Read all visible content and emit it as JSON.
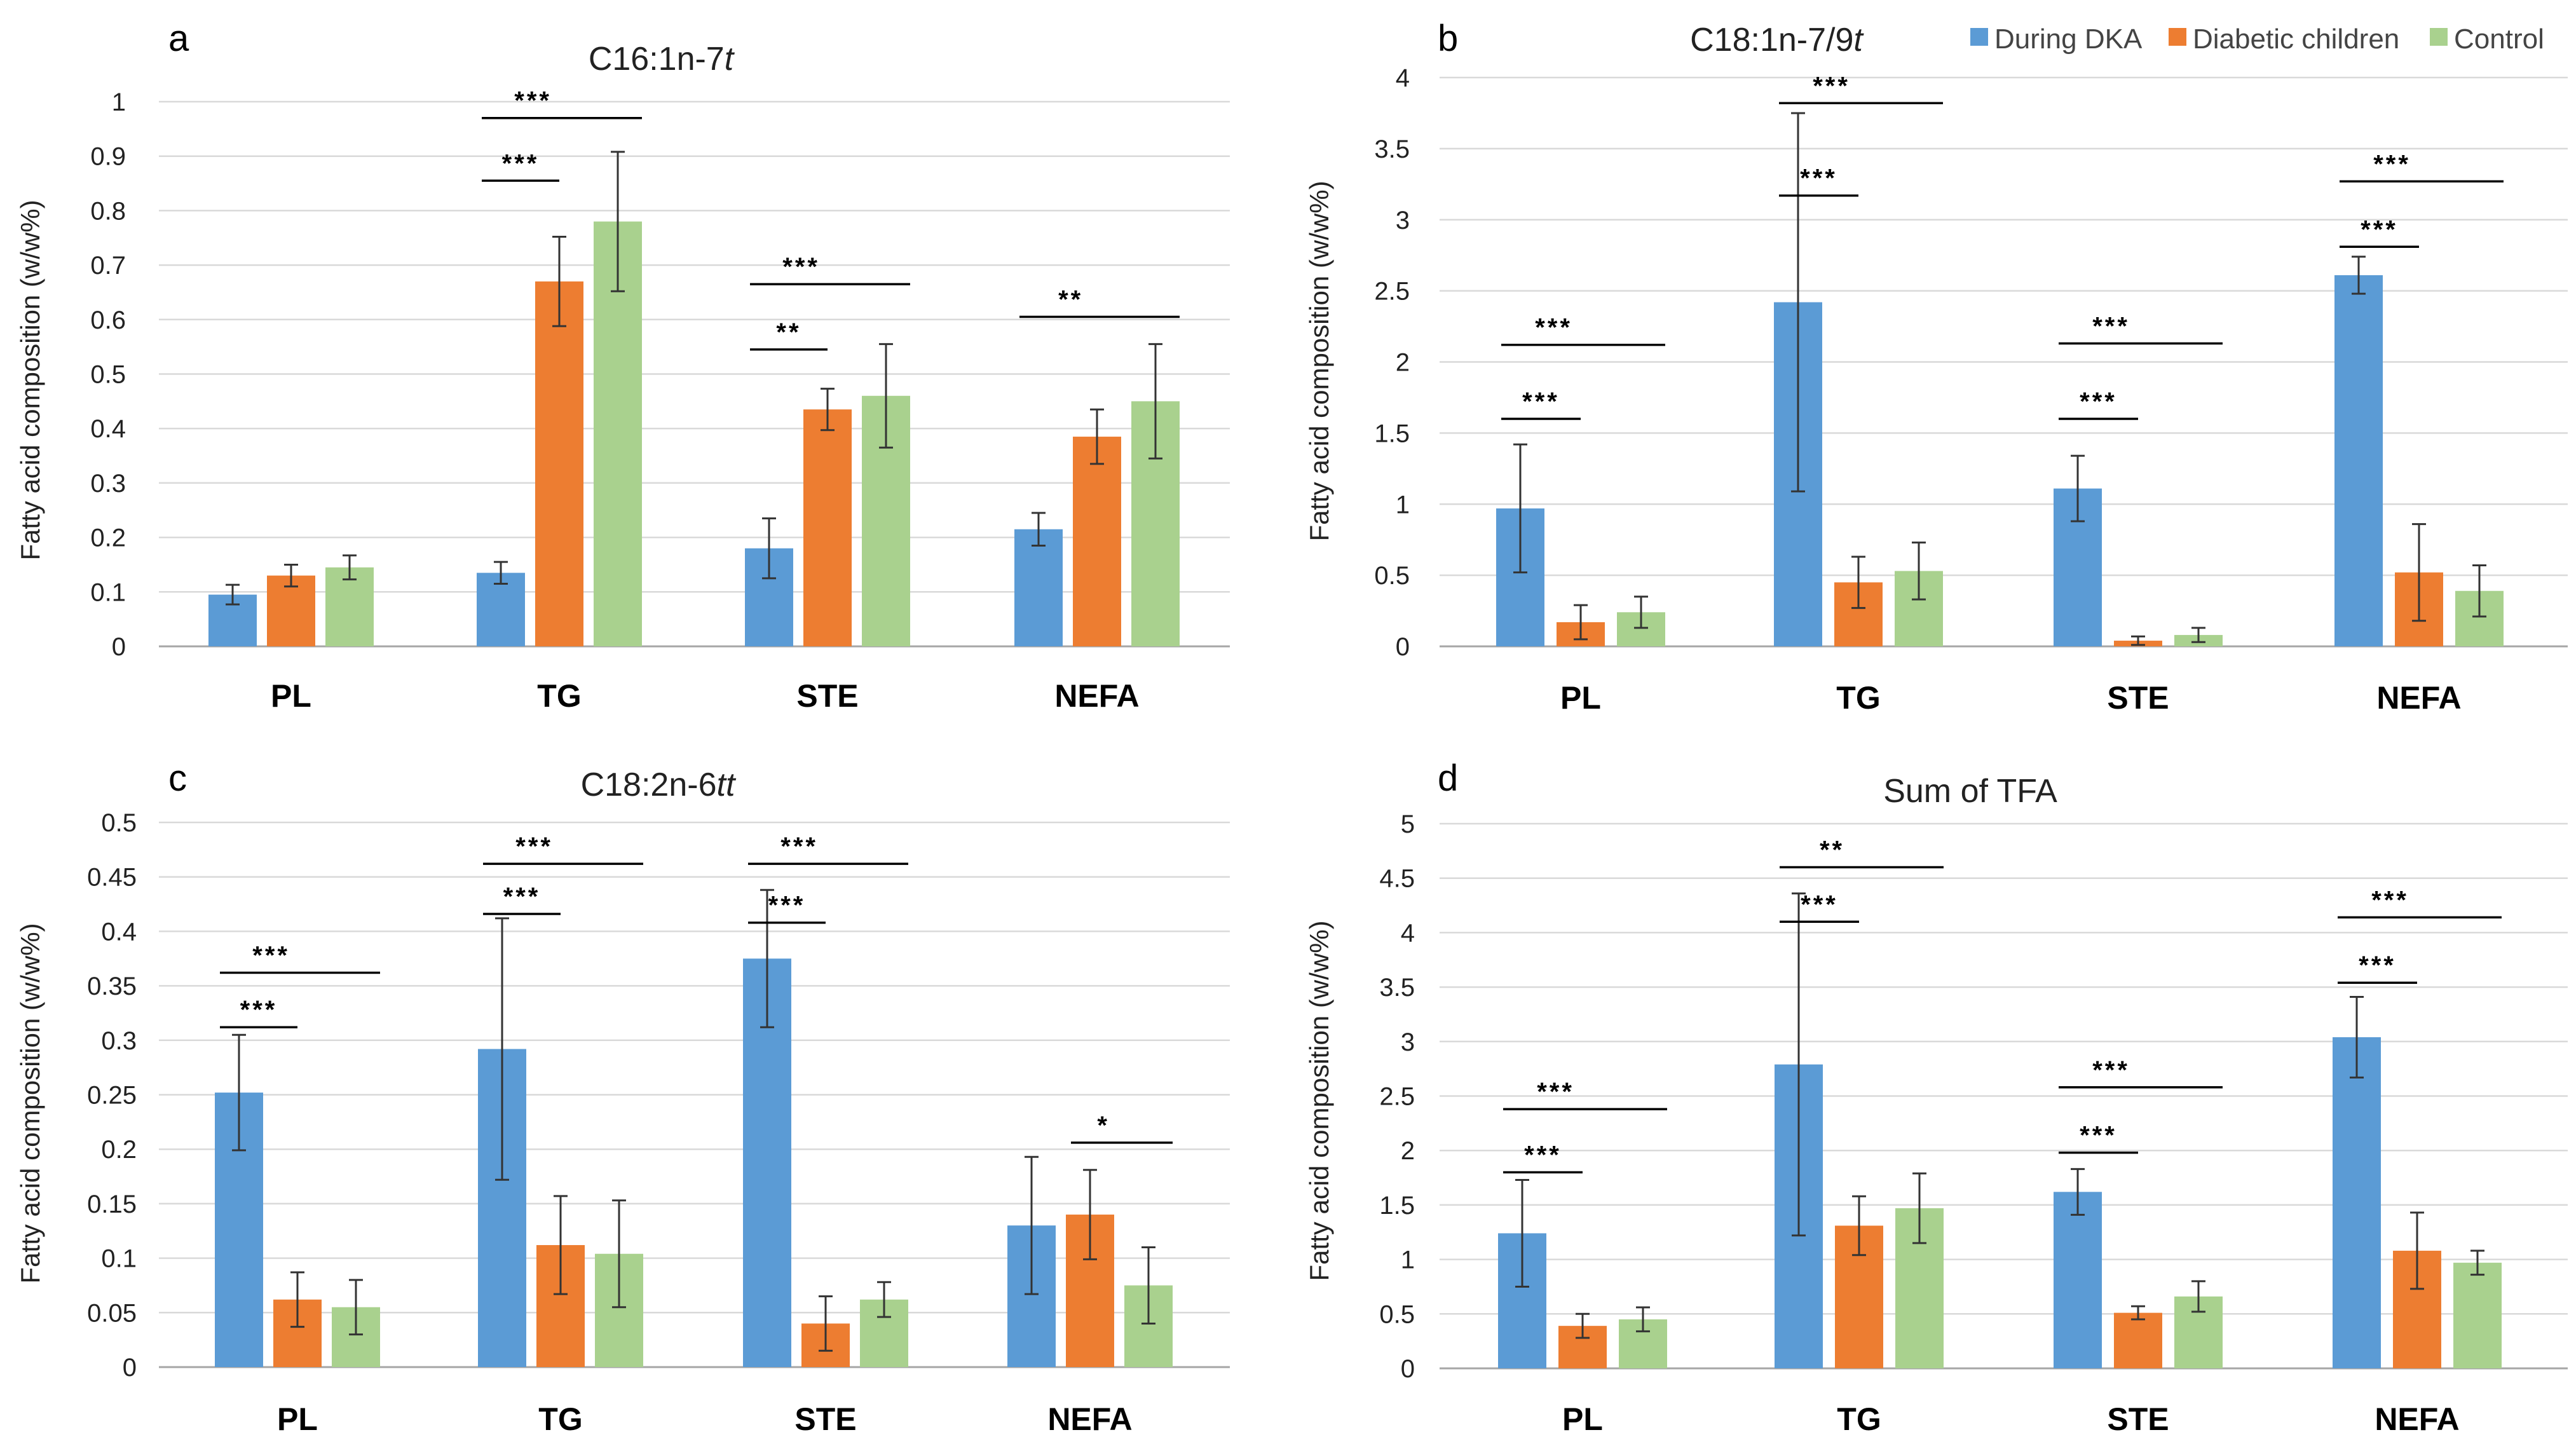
{
  "legend": [
    {
      "name": "During DKA",
      "color": "#5B9BD5"
    },
    {
      "name": "Diabetic children",
      "color": "#ED7D31"
    },
    {
      "name": "Control",
      "color": "#A9D18E"
    }
  ],
  "chart_data": [
    {
      "id": "a",
      "letter": "a",
      "type": "bar",
      "title_main": "C16:1n-7",
      "title_italic": "t",
      "ylabel": "Fatty acid composition (w/w%)",
      "xlabel": "",
      "categories": [
        "PL",
        "TG",
        "STE",
        "NEFA"
      ],
      "ylim": [
        0,
        1
      ],
      "yticks": [
        "0",
        "0.1",
        "0.2",
        "0.3",
        "0.4",
        "0.5",
        "0.6",
        "0.7",
        "0.8",
        "0.9",
        "1"
      ],
      "ytick_values": [
        0,
        0.1,
        0.2,
        0.3,
        0.4,
        0.5,
        0.6,
        0.7,
        0.8,
        0.9,
        1
      ],
      "grid": true,
      "series": [
        {
          "name": "During DKA",
          "values": [
            0.095,
            0.135,
            0.18,
            0.215
          ],
          "errors": [
            0.018,
            0.02,
            0.055,
            0.03
          ]
        },
        {
          "name": "Diabetic children",
          "values": [
            0.13,
            0.67,
            0.435,
            0.385
          ],
          "errors": [
            0.02,
            0.082,
            0.038,
            0.05
          ]
        },
        {
          "name": "Control",
          "values": [
            0.145,
            0.78,
            0.46,
            0.45
          ],
          "errors": [
            0.022,
            0.128,
            0.095,
            0.105
          ]
        }
      ],
      "significance": [
        {
          "label": "***",
          "group": 1,
          "from": 0,
          "to": 1,
          "level": 0.855
        },
        {
          "label": "***",
          "group": 1,
          "from": 0,
          "to": 2,
          "level": 0.97
        },
        {
          "label": "**",
          "group": 2,
          "from": 0,
          "to": 1,
          "level": 0.545
        },
        {
          "label": "***",
          "group": 2,
          "from": 0,
          "to": 2,
          "level": 0.665
        },
        {
          "label": "**",
          "group": 3,
          "from": 0,
          "to": 2,
          "level": 0.605
        }
      ]
    },
    {
      "id": "b",
      "letter": "b",
      "type": "bar",
      "title_main": "C18:1n-7/9",
      "title_italic": "t",
      "ylabel": "Fatty acid composition (w/w%)",
      "xlabel": "",
      "categories": [
        "PL",
        "TG",
        "STE",
        "NEFA"
      ],
      "ylim": [
        0,
        4
      ],
      "yticks": [
        "0",
        "0.5",
        "1",
        "1.5",
        "2",
        "2.5",
        "3",
        "3.5",
        "4"
      ],
      "ytick_values": [
        0,
        0.5,
        1,
        1.5,
        2,
        2.5,
        3,
        3.5,
        4
      ],
      "grid": true,
      "series": [
        {
          "name": "During DKA",
          "values": [
            0.97,
            2.42,
            1.11,
            2.61
          ],
          "errors": [
            0.45,
            1.33,
            0.23,
            0.13
          ]
        },
        {
          "name": "Diabetic children",
          "values": [
            0.17,
            0.45,
            0.04,
            0.52
          ],
          "errors": [
            0.12,
            0.18,
            0.03,
            0.34
          ]
        },
        {
          "name": "Control",
          "values": [
            0.24,
            0.53,
            0.08,
            0.39
          ],
          "errors": [
            0.11,
            0.2,
            0.05,
            0.18
          ]
        }
      ],
      "significance": [
        {
          "label": "***",
          "group": 0,
          "from": 0,
          "to": 1,
          "level": 1.6
        },
        {
          "label": "***",
          "group": 0,
          "from": 0,
          "to": 2,
          "level": 2.12
        },
        {
          "label": "***",
          "group": 1,
          "from": 0,
          "to": 1,
          "level": 3.17
        },
        {
          "label": "***",
          "group": 1,
          "from": 0,
          "to": 2,
          "level": 3.82
        },
        {
          "label": "***",
          "group": 2,
          "from": 0,
          "to": 1,
          "level": 1.6
        },
        {
          "label": "***",
          "group": 2,
          "from": 0,
          "to": 2,
          "level": 2.13
        },
        {
          "label": "***",
          "group": 3,
          "from": 0,
          "to": 1,
          "level": 2.81
        },
        {
          "label": "***",
          "group": 3,
          "from": 0,
          "to": 2,
          "level": 3.27
        }
      ]
    },
    {
      "id": "c",
      "letter": "c",
      "type": "bar",
      "title_main": "C18:2n-6",
      "title_italic": "tt",
      "ylabel": "Fatty acid composition (w/w%)",
      "xlabel": "",
      "categories": [
        "PL",
        "TG",
        "STE",
        "NEFA"
      ],
      "ylim": [
        0,
        0.5
      ],
      "yticks": [
        "0",
        "0.05",
        "0.1",
        "0.15",
        "0.2",
        "0.25",
        "0.3",
        "0.35",
        "0.4",
        "0.45",
        "0.5"
      ],
      "ytick_values": [
        0,
        0.05,
        0.1,
        0.15,
        0.2,
        0.25,
        0.3,
        0.35,
        0.4,
        0.45,
        0.5
      ],
      "grid": true,
      "series": [
        {
          "name": "During DKA",
          "values": [
            0.252,
            0.292,
            0.375,
            0.13
          ],
          "errors": [
            0.053,
            0.12,
            0.063,
            0.063
          ]
        },
        {
          "name": "Diabetic children",
          "values": [
            0.062,
            0.112,
            0.04,
            0.14
          ],
          "errors": [
            0.025,
            0.045,
            0.025,
            0.041
          ]
        },
        {
          "name": "Control",
          "values": [
            0.055,
            0.104,
            0.062,
            0.075
          ],
          "errors": [
            0.025,
            0.049,
            0.016,
            0.035
          ]
        }
      ],
      "significance": [
        {
          "label": "***",
          "group": 0,
          "from": 0,
          "to": 1,
          "level": 0.312
        },
        {
          "label": "***",
          "group": 0,
          "from": 0,
          "to": 2,
          "level": 0.362
        },
        {
          "label": "***",
          "group": 1,
          "from": 0,
          "to": 1,
          "level": 0.416
        },
        {
          "label": "***",
          "group": 1,
          "from": 0,
          "to": 2,
          "level": 0.462
        },
        {
          "label": "***",
          "group": 2,
          "from": 0,
          "to": 1,
          "level": 0.408
        },
        {
          "label": "***",
          "group": 2,
          "from": 0,
          "to": 2,
          "level": 0.462
        },
        {
          "label": "*",
          "group": 3,
          "from": 1,
          "to": 2,
          "level": 0.206
        }
      ]
    },
    {
      "id": "d",
      "letter": "d",
      "type": "bar",
      "title_main": "Sum of TFA",
      "title_italic": "",
      "ylabel": "Fatty acid composition (w/w%)",
      "xlabel": "",
      "categories": [
        "PL",
        "TG",
        "STE",
        "NEFA"
      ],
      "ylim": [
        0,
        5
      ],
      "yticks": [
        "0",
        "0.5",
        "1",
        "1.5",
        "2",
        "2.5",
        "3",
        "3.5",
        "4",
        "4.5",
        "5"
      ],
      "ytick_values": [
        0,
        0.5,
        1,
        1.5,
        2,
        2.5,
        3,
        3.5,
        4,
        4.5,
        5
      ],
      "grid": true,
      "series": [
        {
          "name": "During DKA",
          "values": [
            1.24,
            2.79,
            1.62,
            3.04
          ],
          "errors": [
            0.49,
            1.57,
            0.21,
            0.37
          ]
        },
        {
          "name": "Diabetic children",
          "values": [
            0.39,
            1.31,
            0.51,
            1.08
          ],
          "errors": [
            0.11,
            0.27,
            0.06,
            0.35
          ]
        },
        {
          "name": "Control",
          "values": [
            0.45,
            1.47,
            0.66,
            0.97
          ],
          "errors": [
            0.11,
            0.32,
            0.14,
            0.11
          ]
        }
      ],
      "significance": [
        {
          "label": "***",
          "group": 0,
          "from": 0,
          "to": 1,
          "level": 1.8
        },
        {
          "label": "***",
          "group": 0,
          "from": 0,
          "to": 2,
          "level": 2.38
        },
        {
          "label": "***",
          "group": 1,
          "from": 0,
          "to": 1,
          "level": 4.1
        },
        {
          "label": "**",
          "group": 1,
          "from": 0,
          "to": 2,
          "level": 4.6
        },
        {
          "label": "***",
          "group": 2,
          "from": 0,
          "to": 1,
          "level": 1.98
        },
        {
          "label": "***",
          "group": 2,
          "from": 0,
          "to": 2,
          "level": 2.58
        },
        {
          "label": "***",
          "group": 3,
          "from": 0,
          "to": 1,
          "level": 3.54
        },
        {
          "label": "***",
          "group": 3,
          "from": 0,
          "to": 2,
          "level": 4.14
        }
      ]
    }
  ]
}
